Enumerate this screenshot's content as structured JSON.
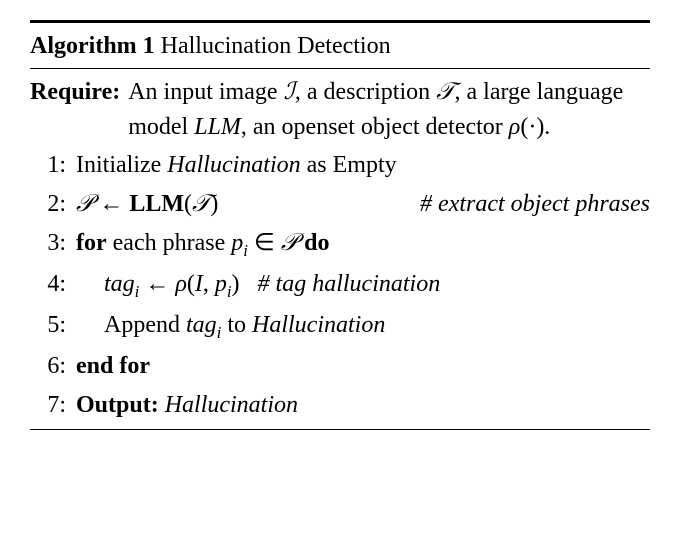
{
  "algorithm": {
    "number": "Algorithm 1",
    "title": "Hallucination Detection",
    "require_label": "Require:",
    "require_text_1": "An input image ",
    "require_sym_1": "ℐ",
    "require_text_2": ", a description ",
    "require_sym_2": "𝒯",
    "require_text_3": ", a large language model ",
    "require_llm": "LLM",
    "require_text_4": ", an openset object detector ",
    "require_rho": "ρ",
    "require_text_5": "(·).",
    "steps": {
      "s1_num": "1:",
      "s1_a": "Initialize ",
      "s1_b": "Hallucination",
      "s1_c": " as Empty",
      "s2_num": "2:",
      "s2_a": "𝒫",
      "s2_b": " ← ",
      "s2_c": "LLM",
      "s2_d": "(",
      "s2_e": "𝒯",
      "s2_f": ")",
      "s2_comment": "# extract object phrases",
      "s3_num": "3:",
      "s3_a": "for",
      "s3_b": " each phrase ",
      "s3_c": "p",
      "s3_sub": "i",
      "s3_d": " ∈ ",
      "s3_e": "𝒫",
      "s3_f": " ",
      "s3_g": "do",
      "s4_num": "4:",
      "s4_a": "tag",
      "s4_sub": "i",
      "s4_b": " ← ",
      "s4_c": "ρ",
      "s4_d": "(",
      "s4_e": "I",
      "s4_f": ", ",
      "s4_g": "p",
      "s4_sub2": "i",
      "s4_h": ")",
      "s4_comment": "# tag hallucination",
      "s5_num": "5:",
      "s5_a": "Append ",
      "s5_b": "tag",
      "s5_sub": "i",
      "s5_c": " to ",
      "s5_d": "Hallucination",
      "s6_num": "6:",
      "s6_a": "end for",
      "s7_num": "7:",
      "s7_a": "Output:",
      "s7_b": " ",
      "s7_c": "Hallucination"
    }
  },
  "style": {
    "background": "#ffffff",
    "text_color": "#000000",
    "font_size_base": 24,
    "rule_thick": 3,
    "rule_thin": 1.5
  }
}
